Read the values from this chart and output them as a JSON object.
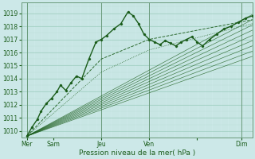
{
  "xlabel": "Pression niveau de la mer( hPa )",
  "bg_color": "#cce8e8",
  "grid_color_major": "#99ccbb",
  "grid_color_minor": "#b8ddd5",
  "line_color": "#1a5c1a",
  "ylim": [
    1009.5,
    1019.8
  ],
  "xlim": [
    0,
    130
  ],
  "yticks": [
    1010,
    1011,
    1012,
    1013,
    1014,
    1015,
    1016,
    1017,
    1018,
    1019
  ],
  "x_day_positions": [
    3,
    18,
    45,
    72,
    99,
    124
  ],
  "x_day_labels": [
    "Mer",
    "Sam",
    "Jeu",
    "Ven",
    "",
    "Dim"
  ],
  "x_major_vlines": [
    3,
    45,
    72,
    124
  ],
  "fan_origin_x": 3,
  "fan_origin_y": 1009.6,
  "fan_end_x": 130,
  "fan_end_y": [
    1018.9,
    1018.5,
    1018.1,
    1017.7,
    1017.3,
    1016.9,
    1016.5,
    1016.1,
    1015.7
  ],
  "main_line_x": [
    3,
    6,
    9,
    11,
    14,
    17,
    20,
    22,
    25,
    28,
    31,
    34,
    38,
    42,
    45,
    48,
    52,
    56,
    60,
    63,
    66,
    69,
    72,
    75,
    78,
    81,
    84,
    87,
    90,
    93,
    96,
    99,
    102,
    106,
    110,
    114,
    118,
    122,
    126,
    130
  ],
  "main_line_y": [
    1009.6,
    1010.3,
    1010.9,
    1011.5,
    1012.1,
    1012.5,
    1013.0,
    1013.5,
    1013.1,
    1013.7,
    1014.2,
    1014.0,
    1015.5,
    1016.8,
    1017.0,
    1017.3,
    1017.8,
    1018.2,
    1019.1,
    1018.8,
    1018.2,
    1017.4,
    1017.0,
    1016.8,
    1016.6,
    1016.9,
    1016.7,
    1016.5,
    1016.8,
    1017.0,
    1017.2,
    1016.8,
    1016.5,
    1017.0,
    1017.4,
    1017.8,
    1018.0,
    1018.3,
    1018.6,
    1018.8
  ],
  "dashed_line_x": [
    3,
    45,
    72,
    130
  ],
  "dashed_line_y": [
    1009.6,
    1015.5,
    1017.0,
    1018.5
  ],
  "dotted_line_x": [
    3,
    45,
    72,
    130
  ],
  "dotted_line_y": [
    1009.6,
    1014.5,
    1016.2,
    1018.2
  ]
}
